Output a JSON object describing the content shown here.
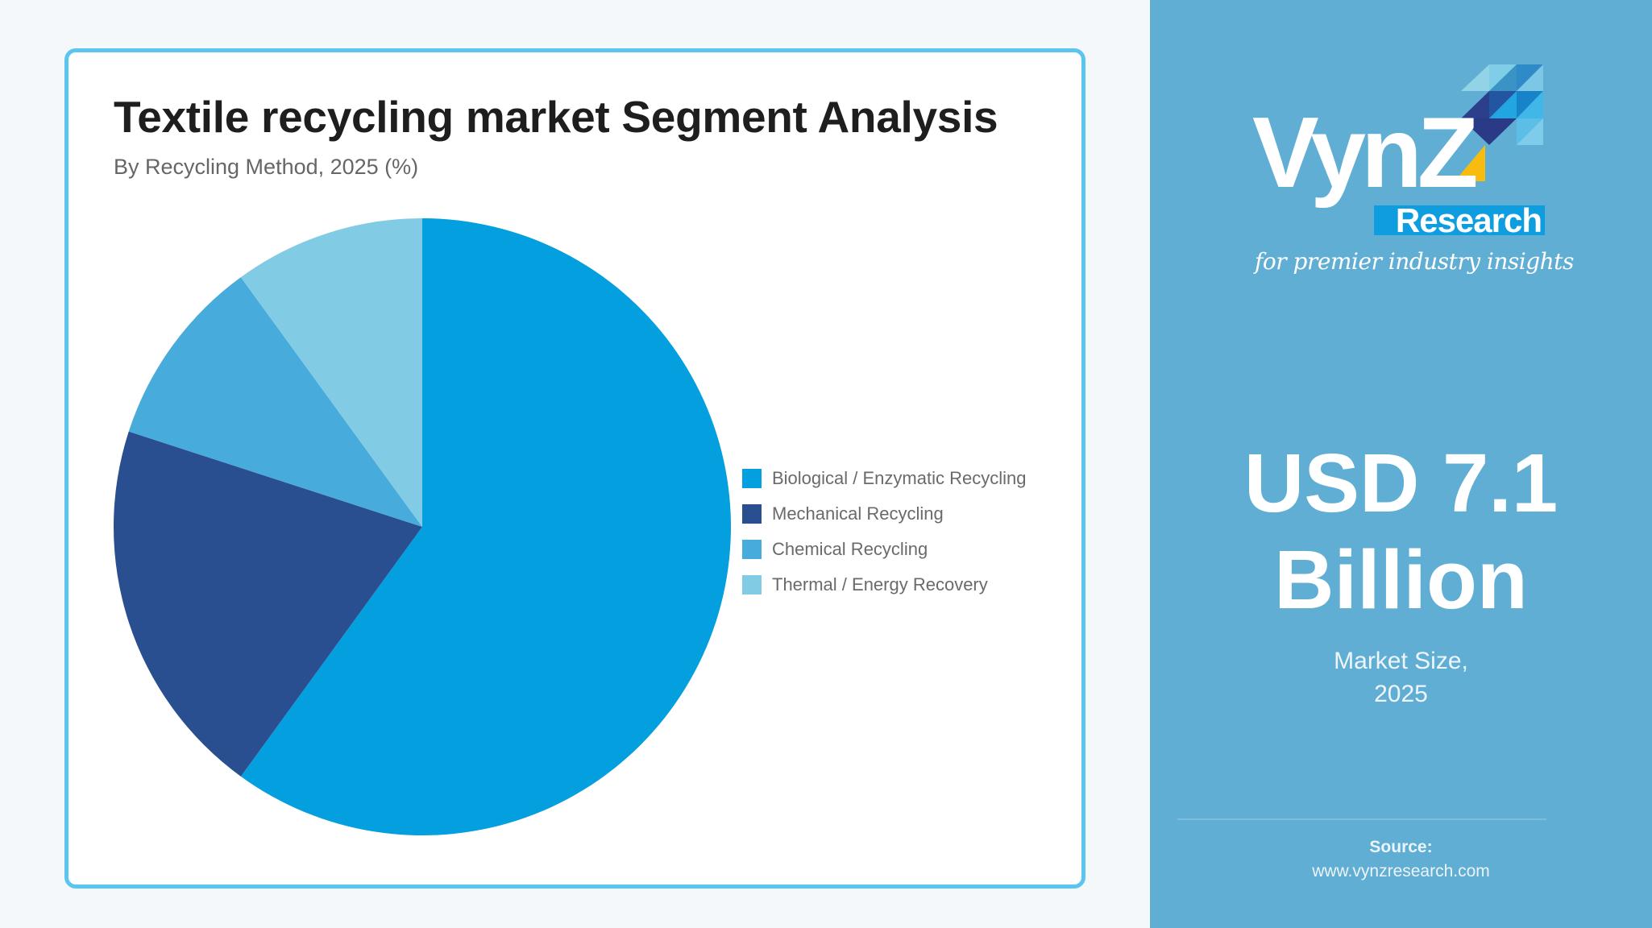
{
  "card": {
    "title": "Textile recycling market Segment Analysis",
    "subtitle": "By Recycling Method, 2025 (%)"
  },
  "chart_data": {
    "type": "pie",
    "title": "Textile recycling market Segment Analysis",
    "subtitle": "By Recycling Method, 2025 (%)",
    "categories": [
      "Biological / Enzymatic Recycling",
      "Mechanical Recycling",
      "Chemical Recycling",
      "Thermal / Energy Recovery"
    ],
    "values": [
      60,
      20,
      10,
      10
    ],
    "colors": [
      "#049FDF",
      "#2A4F91",
      "#47ACDB",
      "#82CBE5"
    ],
    "unit": "%",
    "start_angle_deg": 0,
    "direction": "clockwise",
    "legend_position": "right"
  },
  "legend": {
    "items": [
      {
        "label": "Biological / Enzymatic Recycling",
        "color": "#049FDF"
      },
      {
        "label": "Mechanical Recycling",
        "color": "#2A4F91"
      },
      {
        "label": "Chemical Recycling",
        "color": "#47ACDB"
      },
      {
        "label": "Thermal / Energy Recovery",
        "color": "#82CBE5"
      }
    ]
  },
  "panel": {
    "logo": {
      "brand": "VynZ",
      "sub_brand": "Research",
      "tagline": "for premier industry insights"
    },
    "market_value_line1": "USD 7.1",
    "market_value_line2": "Billion",
    "market_label_line1": "Market Size,",
    "market_label_line2": "2025",
    "source_label": "Source:",
    "source_url": "www.vynzresearch.com"
  },
  "colors": {
    "page_background": "#F4F8FB",
    "card_border": "#5BC5F0",
    "panel_background": "#61AED4",
    "logo_accent_yellow": "#F7BC0F",
    "logo_research_box": "#0E9EE0"
  }
}
